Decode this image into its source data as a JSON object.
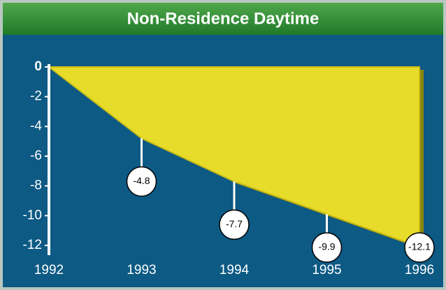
{
  "chart_data": {
    "type": "area",
    "title": "Non-Residence Daytime",
    "x": [
      "1992",
      "1993",
      "1994",
      "1995",
      "1996"
    ],
    "values": [
      0,
      -4.8,
      -7.7,
      -9.9,
      -12.1
    ],
    "value_labels": [
      null,
      "-4.8",
      "-7.7",
      "-9.9",
      "-12.1"
    ],
    "color": "#e8dc2a",
    "ylim": [
      -12,
      0
    ],
    "yticks": [
      0,
      -2,
      -4,
      -6,
      -8,
      -10,
      -12
    ]
  }
}
